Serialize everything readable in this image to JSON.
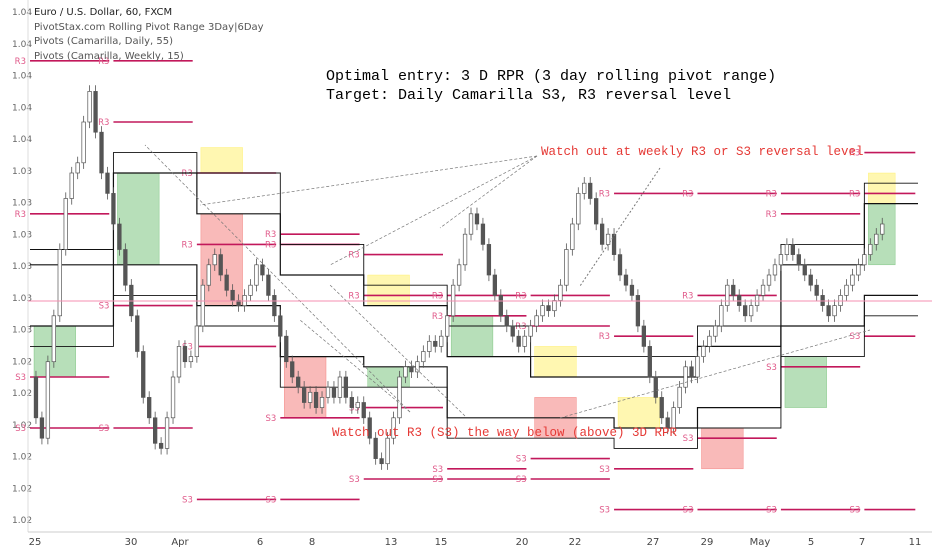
{
  "legend": {
    "title": "Euro / U.S. Dollar, 60, FXCM",
    "indicator_1": "PivotStax.com Rolling Pivot Range 3Day|6Day",
    "indicator_2": "Pivots (Camarilla, Daily, 55)",
    "indicator_3": "Pivots (Camarilla, Weekly, 15)"
  },
  "annotations": {
    "top_line_1": "Optimal entry: 3 D RPR (3 day rolling pivot range)",
    "top_line_2": "Target: Daily Camarilla S3, R3 reversal level",
    "weekly_warning": "Watch out at weekly R3 or S3 reversal level",
    "bottom_warning": "Watch out R3 (S3) the way below (above) 3D RPR"
  },
  "colors": {
    "candles": "#555555",
    "rpr_lines": "#111111",
    "pivot_lines": "#c2185b",
    "pivot_labels": "#e05a8a",
    "annotation_red": "#e53935",
    "green_box": "#4caf50",
    "red_box": "#ef5350",
    "yellow_box": "#ffeb3b",
    "price_line": "#f48fb1"
  },
  "chart_data": {
    "type": "candlestick",
    "instrument": "Euro / U.S. Dollar",
    "timeframe": "60",
    "source": "FXCM",
    "y_tick_labels": [
      "1.04",
      "1.04",
      "1.04",
      "1.04",
      "1.04",
      "1.03",
      "1.03",
      "1.03",
      "1.03",
      "1.03",
      "1.03",
      "1.02",
      "1.02",
      "1.02",
      "1.02",
      "1.02",
      "1.02"
    ],
    "x_tick_labels": [
      "25",
      "30",
      "Apr",
      "6",
      "8",
      "13",
      "15",
      "20",
      "22",
      "27",
      "29",
      "May",
      "5",
      "7",
      "11"
    ],
    "close_path": [
      [
        0.0,
        0.3
      ],
      [
        0.02,
        0.22
      ],
      [
        0.03,
        0.18
      ],
      [
        0.05,
        0.33
      ],
      [
        0.07,
        0.42
      ],
      [
        0.09,
        0.55
      ],
      [
        0.1,
        0.65
      ],
      [
        0.12,
        0.7
      ],
      [
        0.14,
        0.72
      ],
      [
        0.15,
        0.8
      ],
      [
        0.16,
        0.86
      ],
      [
        0.17,
        0.78
      ],
      [
        0.18,
        0.7
      ],
      [
        0.19,
        0.66
      ],
      [
        0.2,
        0.6
      ],
      [
        0.21,
        0.55
      ],
      [
        0.22,
        0.48
      ],
      [
        0.23,
        0.42
      ],
      [
        0.24,
        0.35
      ],
      [
        0.25,
        0.26
      ],
      [
        0.26,
        0.22
      ],
      [
        0.27,
        0.17
      ],
      [
        0.28,
        0.16
      ],
      [
        0.29,
        0.22
      ],
      [
        0.3,
        0.3
      ],
      [
        0.31,
        0.36
      ],
      [
        0.32,
        0.33
      ],
      [
        0.33,
        0.34
      ],
      [
        0.34,
        0.4
      ],
      [
        0.35,
        0.48
      ],
      [
        0.36,
        0.52
      ],
      [
        0.37,
        0.54
      ],
      [
        0.38,
        0.5
      ],
      [
        0.39,
        0.47
      ],
      [
        0.4,
        0.45
      ],
      [
        0.41,
        0.44
      ],
      [
        0.42,
        0.46
      ],
      [
        0.43,
        0.48
      ],
      [
        0.44,
        0.52
      ],
      [
        0.45,
        0.5
      ],
      [
        0.46,
        0.46
      ],
      [
        0.47,
        0.42
      ],
      [
        0.48,
        0.38
      ],
      [
        0.49,
        0.33
      ],
      [
        0.5,
        0.3
      ],
      [
        0.51,
        0.28
      ],
      [
        0.52,
        0.25
      ],
      [
        0.53,
        0.27
      ],
      [
        0.54,
        0.24
      ],
      [
        0.55,
        0.26
      ],
      [
        0.56,
        0.28
      ],
      [
        0.57,
        0.26
      ],
      [
        0.58,
        0.3
      ],
      [
        0.59,
        0.26
      ],
      [
        0.6,
        0.24
      ],
      [
        0.61,
        0.25
      ],
      [
        0.62,
        0.22
      ],
      [
        0.63,
        0.18
      ],
      [
        0.64,
        0.14
      ],
      [
        0.65,
        0.13
      ],
      [
        0.66,
        0.18
      ],
      [
        0.67,
        0.22
      ],
      [
        0.68,
        0.3
      ],
      [
        0.69,
        0.32
      ],
      [
        0.7,
        0.31
      ],
      [
        0.71,
        0.33
      ],
      [
        0.72,
        0.35
      ],
      [
        0.73,
        0.37
      ],
      [
        0.74,
        0.36
      ],
      [
        0.75,
        0.38
      ],
      [
        0.76,
        0.42
      ],
      [
        0.77,
        0.48
      ],
      [
        0.78,
        0.52
      ],
      [
        0.79,
        0.58
      ],
      [
        0.8,
        0.62
      ],
      [
        0.81,
        0.6
      ],
      [
        0.82,
        0.56
      ],
      [
        0.83,
        0.5
      ],
      [
        0.84,
        0.46
      ],
      [
        0.85,
        0.42
      ],
      [
        0.86,
        0.4
      ],
      [
        0.87,
        0.38
      ],
      [
        0.88,
        0.36
      ],
      [
        0.89,
        0.38
      ],
      [
        0.9,
        0.4
      ],
      [
        0.91,
        0.42
      ],
      [
        0.92,
        0.44
      ],
      [
        0.93,
        0.43
      ],
      [
        0.94,
        0.45
      ],
      [
        0.95,
        0.48
      ],
      [
        0.96,
        0.55
      ],
      [
        0.97,
        0.6
      ],
      [
        0.98,
        0.66
      ],
      [
        0.99,
        0.68
      ],
      [
        1.0,
        0.65
      ],
      [
        1.01,
        0.6
      ],
      [
        1.02,
        0.56
      ],
      [
        1.03,
        0.58
      ],
      [
        1.04,
        0.54
      ],
      [
        1.05,
        0.5
      ],
      [
        1.06,
        0.48
      ],
      [
        1.07,
        0.46
      ],
      [
        1.08,
        0.4
      ],
      [
        1.09,
        0.36
      ],
      [
        1.1,
        0.3
      ],
      [
        1.11,
        0.26
      ],
      [
        1.12,
        0.22
      ],
      [
        1.13,
        0.2
      ],
      [
        1.14,
        0.24
      ],
      [
        1.15,
        0.28
      ],
      [
        1.16,
        0.32
      ],
      [
        1.17,
        0.3
      ],
      [
        1.18,
        0.34
      ],
      [
        1.19,
        0.36
      ],
      [
        1.2,
        0.38
      ],
      [
        1.21,
        0.4
      ],
      [
        1.22,
        0.44
      ],
      [
        1.23,
        0.48
      ],
      [
        1.24,
        0.46
      ],
      [
        1.25,
        0.44
      ],
      [
        1.26,
        0.42
      ],
      [
        1.27,
        0.44
      ],
      [
        1.28,
        0.46
      ],
      [
        1.29,
        0.48
      ],
      [
        1.3,
        0.5
      ],
      [
        1.31,
        0.52
      ],
      [
        1.32,
        0.54
      ],
      [
        1.33,
        0.56
      ],
      [
        1.34,
        0.54
      ],
      [
        1.35,
        0.52
      ],
      [
        1.36,
        0.5
      ],
      [
        1.37,
        0.48
      ],
      [
        1.38,
        0.46
      ],
      [
        1.39,
        0.44
      ],
      [
        1.4,
        0.42
      ],
      [
        1.41,
        0.44
      ],
      [
        1.42,
        0.46
      ],
      [
        1.43,
        0.48
      ],
      [
        1.44,
        0.5
      ],
      [
        1.45,
        0.52
      ],
      [
        1.46,
        0.54
      ],
      [
        1.47,
        0.56
      ],
      [
        1.48,
        0.58
      ],
      [
        1.49,
        0.6
      ]
    ],
    "candle_index_range": [
      0,
      149
    ],
    "rpr_day_boundaries": [
      0,
      14,
      28,
      42,
      56,
      70,
      84,
      98,
      112,
      126,
      140,
      149
    ],
    "rpr_upper_3d": [
      0.52,
      0.7,
      0.62,
      0.5,
      0.44,
      0.34,
      0.3,
      0.3,
      0.36,
      0.52,
      0.64
    ],
    "rpr_lower_3d": [
      0.4,
      0.52,
      0.44,
      0.34,
      0.32,
      0.22,
      0.22,
      0.2,
      0.24,
      0.4,
      0.46
    ],
    "rpr_upper_6d": [
      0.55,
      0.74,
      0.7,
      0.56,
      0.48,
      0.4,
      0.34,
      0.34,
      0.4,
      0.56,
      0.68
    ],
    "rpr_lower_6d": [
      0.36,
      0.46,
      0.4,
      0.28,
      0.28,
      0.18,
      0.18,
      0.16,
      0.2,
      0.34,
      0.42
    ],
    "daily_r3": [
      0.62,
      0.8,
      0.7,
      0.58,
      0.54,
      0.42,
      0.4,
      0.38,
      0.46,
      0.62,
      0.74
    ],
    "daily_s3": [
      0.3,
      0.44,
      0.36,
      0.22,
      0.24,
      0.12,
      0.14,
      0.12,
      0.18,
      0.32,
      0.38
    ],
    "weekly_r3": [
      0.92,
      0.92,
      0.56,
      0.56,
      0.46,
      0.46,
      0.46,
      0.66,
      0.66,
      0.66,
      0.66
    ],
    "weekly_s3": [
      0.2,
      0.2,
      0.06,
      0.06,
      0.1,
      0.1,
      0.1,
      0.04,
      0.04,
      0.04,
      0.04
    ],
    "boxes": [
      {
        "day": 0,
        "from": 0.3,
        "to": 0.4,
        "kind": "green"
      },
      {
        "day": 1,
        "from": 0.52,
        "to": 0.7,
        "kind": "green"
      },
      {
        "day": 2,
        "from": 0.7,
        "to": 0.75,
        "kind": "yellow"
      },
      {
        "day": 2,
        "from": 0.44,
        "to": 0.62,
        "kind": "red"
      },
      {
        "day": 3,
        "from": 0.22,
        "to": 0.34,
        "kind": "red"
      },
      {
        "day": 4,
        "from": 0.44,
        "to": 0.5,
        "kind": "yellow"
      },
      {
        "day": 4,
        "from": 0.28,
        "to": 0.32,
        "kind": "green"
      },
      {
        "day": 5,
        "from": 0.34,
        "to": 0.42,
        "kind": "green"
      },
      {
        "day": 6,
        "from": 0.3,
        "to": 0.36,
        "kind": "yellow"
      },
      {
        "day": 6,
        "from": 0.18,
        "to": 0.26,
        "kind": "red"
      },
      {
        "day": 7,
        "from": 0.2,
        "to": 0.26,
        "kind": "yellow"
      },
      {
        "day": 8,
        "from": 0.12,
        "to": 0.2,
        "kind": "red"
      },
      {
        "day": 9,
        "from": 0.24,
        "to": 0.34,
        "kind": "green"
      },
      {
        "day": 10,
        "from": 0.52,
        "to": 0.64,
        "kind": "green"
      },
      {
        "day": 10,
        "from": 0.64,
        "to": 0.7,
        "kind": "yellow"
      }
    ],
    "grid": false
  }
}
